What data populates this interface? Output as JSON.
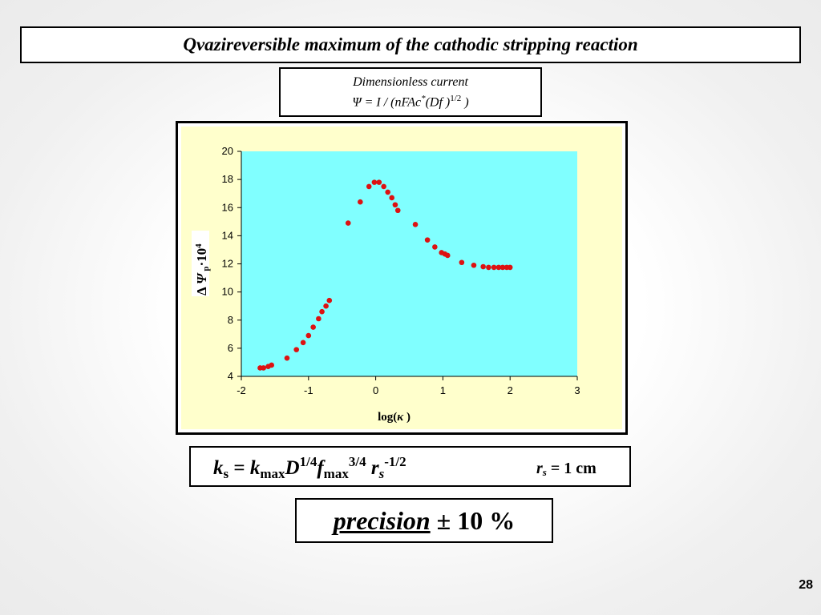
{
  "slide": {
    "title": "Qvazireversible maximum of the cathodic stripping reaction",
    "formula_box": {
      "line1": "Dimensionless current",
      "psi_lhs": "Ψ = I",
      "denominator": "/ (nFAc",
      "star": "*",
      "df": "(Df )",
      "exp": "1/2",
      "close": " )"
    },
    "ks_formula": {
      "k": "k",
      "s_sub": "s",
      "eq": " = ",
      "k2": "k",
      "max_sub": "max",
      "D": "D",
      "d_exp": "1/4",
      "f": "f",
      "max_sub2": "max",
      "f_exp": "3/4",
      "r": " r",
      "s_sub2": "s",
      "r_exp": "-1/2"
    },
    "rs_note": {
      "r": "r",
      "s": "s",
      "value": " = 1 cm"
    },
    "precision": {
      "word": "precision",
      "value": " ± 10 %"
    },
    "slide_number": "28"
  },
  "colors": {
    "plot_bg": "#80ffff",
    "frame_bg": "#ffffcc",
    "marker": "#dd1111"
  },
  "chart_data": {
    "type": "scatter",
    "title": "",
    "xlabel_prefix": "log(",
    "xlabel_symbol": "κ",
    "xlabel_suffix": " )",
    "ylabel_delta": "Δ",
    "ylabel_psi": "Ψ",
    "ylabel_sub": "p",
    "ylabel_mult": "·10",
    "ylabel_exp": "4",
    "xlim": [
      -2,
      3
    ],
    "ylim": [
      4,
      20
    ],
    "xticks": [
      -2,
      -1,
      0,
      1,
      2,
      3
    ],
    "yticks": [
      4,
      6,
      8,
      10,
      12,
      14,
      16,
      18,
      20
    ],
    "xtick_labels": [
      "-2",
      "-1",
      "0",
      "1",
      "2",
      "3"
    ],
    "ytick_labels": [
      "4",
      "6",
      "8",
      "10",
      "12",
      "14",
      "16",
      "18",
      "20"
    ],
    "grid": false,
    "legend": "none",
    "series": [
      {
        "x": [
          -1.72,
          -1.67,
          -1.6,
          -1.55,
          -1.32,
          -1.18,
          -1.08,
          -1.0,
          -0.93,
          -0.85,
          -0.8,
          -0.74,
          -0.69,
          -0.41,
          -0.23,
          -0.1,
          -0.02,
          0.05,
          0.12,
          0.18,
          0.24,
          0.29,
          0.33,
          0.59,
          0.77,
          0.88,
          0.98,
          1.03,
          1.07,
          1.28,
          1.46,
          1.6,
          1.68,
          1.76,
          1.83,
          1.89,
          1.95,
          2.0
        ],
        "y": [
          4.6,
          4.6,
          4.7,
          4.8,
          5.3,
          5.9,
          6.4,
          6.9,
          7.5,
          8.1,
          8.6,
          9.0,
          9.4,
          14.9,
          16.4,
          17.5,
          17.8,
          17.8,
          17.5,
          17.1,
          16.7,
          16.2,
          15.8,
          14.8,
          13.7,
          13.2,
          12.8,
          12.7,
          12.6,
          12.1,
          11.9,
          11.8,
          11.75,
          11.75,
          11.75,
          11.75,
          11.75,
          11.75
        ]
      }
    ]
  }
}
